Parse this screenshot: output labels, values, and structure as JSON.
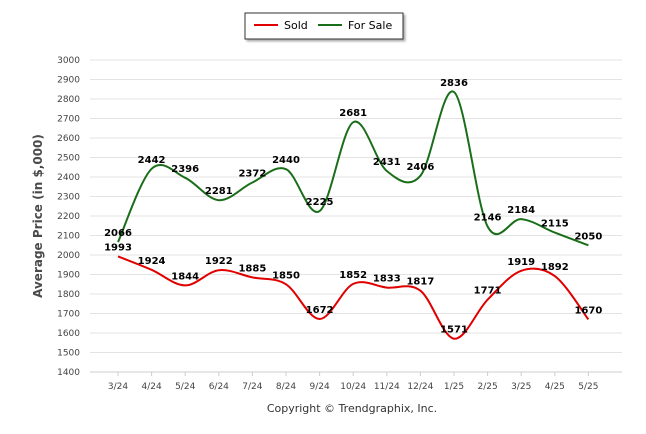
{
  "chart_data": {
    "type": "line",
    "categories": [
      "3/24",
      "4/24",
      "5/24",
      "6/24",
      "7/24",
      "8/24",
      "9/24",
      "10/24",
      "11/24",
      "12/24",
      "1/25",
      "2/25",
      "3/25",
      "4/25",
      "5/25"
    ],
    "series": [
      {
        "name": "Sold",
        "color": "#e00000",
        "values": [
          1993,
          1924,
          1844,
          1922,
          1885,
          1850,
          1672,
          1852,
          1833,
          1817,
          1571,
          1771,
          1919,
          1892,
          1670
        ]
      },
      {
        "name": "For Sale",
        "color": "#1a6e1a",
        "values": [
          2066,
          2442,
          2396,
          2281,
          2372,
          2440,
          2225,
          2681,
          2431,
          2406,
          2836,
          2146,
          2184,
          2115,
          2050
        ]
      }
    ],
    "ylabel": "Average Price (in $,000)",
    "xlabel": "",
    "ylim": [
      1400,
      3000
    ],
    "yticks": [
      1400,
      1500,
      1600,
      1700,
      1800,
      1900,
      2000,
      2100,
      2200,
      2300,
      2400,
      2500,
      2600,
      2700,
      2800,
      2900,
      3000
    ],
    "grid": true,
    "legend_position": "top-center",
    "copyright": "Copyright © Trendgraphix, Inc."
  }
}
